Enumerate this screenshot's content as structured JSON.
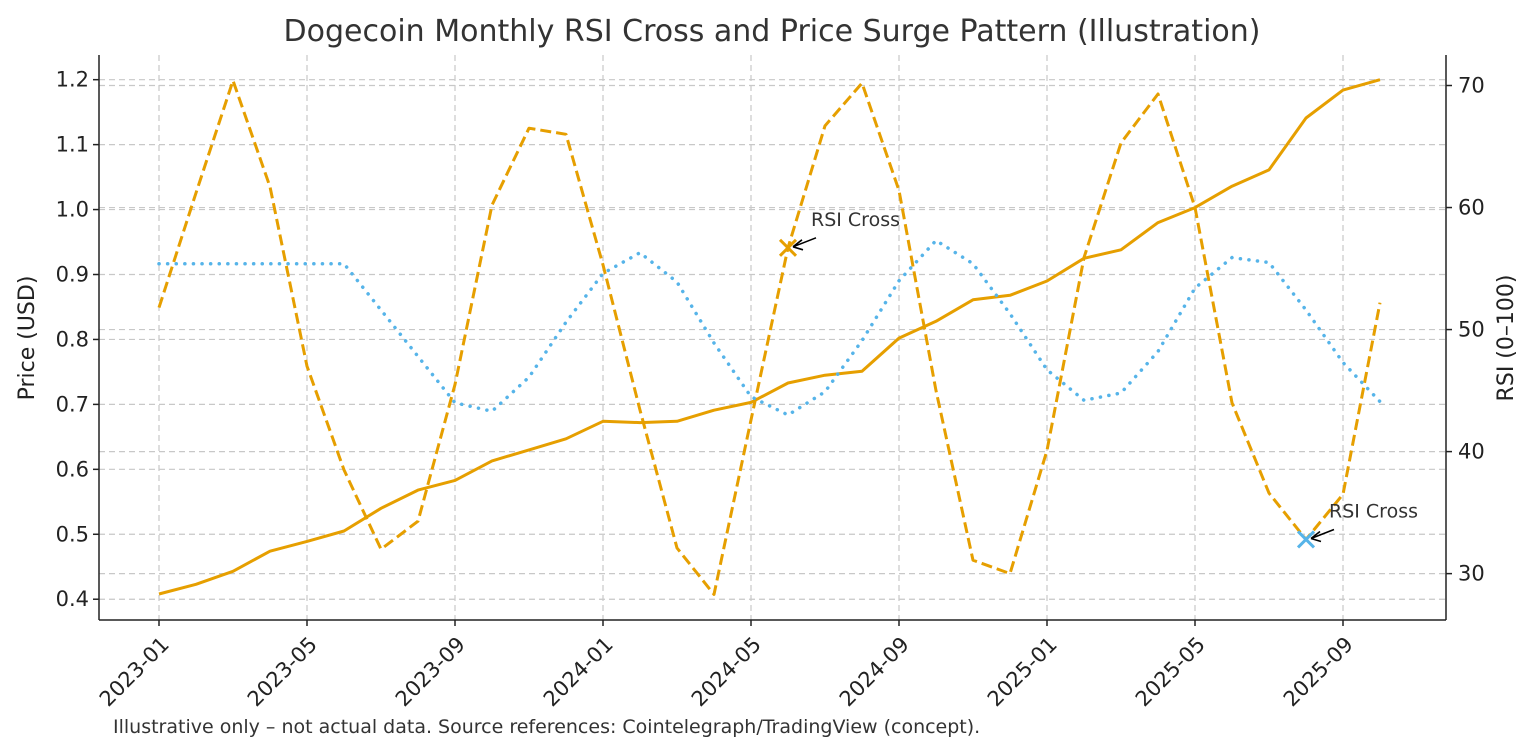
{
  "chart_data": {
    "type": "line",
    "title": "Dogecoin Monthly RSI Cross and Price Surge Pattern (Illustration)",
    "xlabel": "",
    "ylabel_left": "Price (USD)",
    "ylabel_right": "RSI (0–100)",
    "ylim_left": [
      0.368,
      1.238
    ],
    "ylim_right": [
      26.2,
      72.5
    ],
    "yticks_left": [
      "0.4",
      "0.5",
      "0.6",
      "0.7",
      "0.8",
      "0.9",
      "1.0",
      "1.1",
      "1.2"
    ],
    "yticks_right": [
      "30",
      "40",
      "50",
      "60",
      "70"
    ],
    "xticks": [
      "2023-01",
      "2023-05",
      "2023-09",
      "2024-01",
      "2024-05",
      "2024-09",
      "2025-01",
      "2025-05",
      "2025-09"
    ],
    "grid": true,
    "x": [
      "2023-01",
      "2023-02",
      "2023-03",
      "2023-04",
      "2023-05",
      "2023-06",
      "2023-07",
      "2023-08",
      "2023-09",
      "2023-10",
      "2023-11",
      "2023-12",
      "2024-01",
      "2024-02",
      "2024-03",
      "2024-04",
      "2024-05",
      "2024-06",
      "2024-07",
      "2024-08",
      "2024-09",
      "2024-10",
      "2024-11",
      "2024-12",
      "2025-01",
      "2025-02",
      "2025-03",
      "2025-04",
      "2025-05",
      "2025-06",
      "2025-07",
      "2025-08",
      "2025-09",
      "2025-10"
    ],
    "series": [
      {
        "axis": "left",
        "style": "solid",
        "color": "#E69F00",
        "values": [
          0.408,
          0.423,
          0.443,
          0.474,
          0.489,
          0.505,
          0.54,
          0.568,
          0.583,
          0.613,
          0.63,
          0.647,
          0.674,
          0.672,
          0.674,
          0.691,
          0.703,
          0.733,
          0.745,
          0.751,
          0.802,
          0.828,
          0.861,
          0.868,
          0.89,
          0.925,
          0.938,
          0.98,
          1.003,
          1.036,
          1.061,
          1.141,
          1.184,
          1.2
        ]
      },
      {
        "axis": "right",
        "style": "dashed",
        "color": "#E69F00",
        "values": [
          51.8,
          61.2,
          70.4,
          61.7,
          47.0,
          38.5,
          32.0,
          34.3,
          45.5,
          60.2,
          66.5,
          66.0,
          55.3,
          43.4,
          32.1,
          28.3,
          42.6,
          56.7,
          66.7,
          70.2,
          61.4,
          45.0,
          31.1,
          30.0,
          40.1,
          55.9,
          65.3,
          69.3,
          60.0,
          44.0,
          36.6,
          32.8,
          36.5,
          52.2
        ]
      },
      {
        "axis": "right",
        "style": "dotted",
        "color": "#56B4E9",
        "values": [
          55.4,
          55.4,
          55.4,
          55.4,
          55.4,
          55.4,
          51.6,
          47.8,
          44.0,
          43.3,
          46.1,
          50.6,
          54.6,
          56.3,
          53.9,
          48.9,
          44.5,
          43.0,
          44.9,
          49.1,
          54.0,
          57.3,
          55.4,
          51.3,
          46.7,
          44.2,
          44.8,
          48.2,
          53.4,
          55.9,
          55.5,
          51.6,
          47.3,
          44.1
        ]
      }
    ],
    "annotations": [
      {
        "text": "RSI Cross",
        "x": "2024-06",
        "rsi": 56.7,
        "marker": "x",
        "color": "#E69F00"
      },
      {
        "text": "RSI Cross",
        "x": "2025-08",
        "rsi": 32.8,
        "marker": "x",
        "color": "#56B4E9"
      }
    ],
    "footnote": "Illustrative only – not actual data. Source references: Cointelegraph/TradingView (concept)."
  }
}
